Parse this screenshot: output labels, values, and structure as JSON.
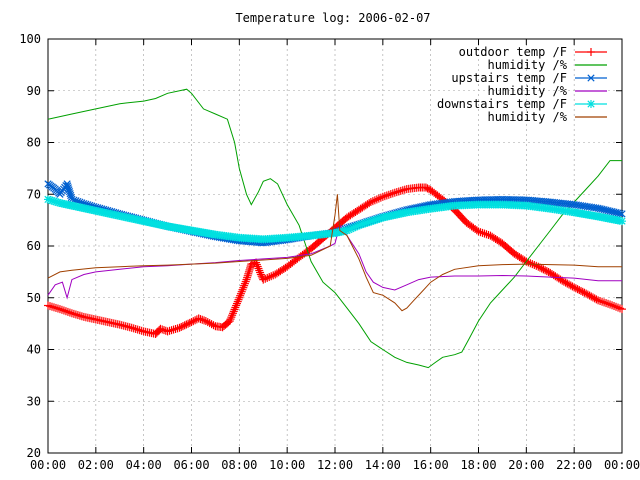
{
  "chart_data": {
    "type": "line",
    "title": "Temperature log: 2006-02-07",
    "xlabel": "",
    "ylabel": "",
    "xlim": [
      0,
      24
    ],
    "ylim": [
      20,
      100
    ],
    "x_ticks": [
      {
        "v": 0,
        "label": "00:00"
      },
      {
        "v": 2,
        "label": "02:00"
      },
      {
        "v": 4,
        "label": "04:00"
      },
      {
        "v": 6,
        "label": "06:00"
      },
      {
        "v": 8,
        "label": "08:00"
      },
      {
        "v": 10,
        "label": "10:00"
      },
      {
        "v": 12,
        "label": "12:00"
      },
      {
        "v": 14,
        "label": "14:00"
      },
      {
        "v": 16,
        "label": "16:00"
      },
      {
        "v": 18,
        "label": "18:00"
      },
      {
        "v": 20,
        "label": "20:00"
      },
      {
        "v": 22,
        "label": "22:00"
      },
      {
        "v": 24,
        "label": "00:00"
      }
    ],
    "y_ticks": [
      {
        "v": 20,
        "label": "20"
      },
      {
        "v": 30,
        "label": "30"
      },
      {
        "v": 40,
        "label": "40"
      },
      {
        "v": 50,
        "label": "50"
      },
      {
        "v": 60,
        "label": "60"
      },
      {
        "v": 70,
        "label": "70"
      },
      {
        "v": 80,
        "label": "80"
      },
      {
        "v": 90,
        "label": "90"
      },
      {
        "v": 100,
        "label": "100"
      }
    ],
    "grid": true,
    "legend_position": "top-right",
    "series": [
      {
        "name": "outdoor temp /F",
        "color": "#ff0000",
        "marker": "plus",
        "points": [
          [
            0,
            48.5
          ],
          [
            0.5,
            47.8
          ],
          [
            1,
            47
          ],
          [
            1.5,
            46.3
          ],
          [
            2,
            45.8
          ],
          [
            2.5,
            45.3
          ],
          [
            3,
            44.8
          ],
          [
            3.5,
            44.2
          ],
          [
            4,
            43.5
          ],
          [
            4.5,
            43
          ],
          [
            4.7,
            44
          ],
          [
            5,
            43.5
          ],
          [
            5.5,
            44.2
          ],
          [
            6,
            45.3
          ],
          [
            6.3,
            46
          ],
          [
            6.6,
            45.5
          ],
          [
            7,
            44.5
          ],
          [
            7.3,
            44.3
          ],
          [
            7.6,
            45.5
          ],
          [
            8,
            50
          ],
          [
            8.3,
            53.5
          ],
          [
            8.5,
            56.5
          ],
          [
            8.7,
            56.8
          ],
          [
            8.9,
            54.5
          ],
          [
            9,
            53.5
          ],
          [
            9.5,
            54.5
          ],
          [
            10,
            56
          ],
          [
            10.5,
            57.8
          ],
          [
            11,
            59.5
          ],
          [
            11.5,
            61.5
          ],
          [
            12,
            63.5
          ],
          [
            12.5,
            65.5
          ],
          [
            13,
            67
          ],
          [
            13.5,
            68.5
          ],
          [
            14,
            69.5
          ],
          [
            14.5,
            70.3
          ],
          [
            15,
            71
          ],
          [
            15.5,
            71.3
          ],
          [
            15.8,
            71.3
          ],
          [
            16,
            70.8
          ],
          [
            16.5,
            69
          ],
          [
            17,
            67
          ],
          [
            17.5,
            64.5
          ],
          [
            18,
            62.8
          ],
          [
            18.5,
            62
          ],
          [
            19,
            60.5
          ],
          [
            19.5,
            58.5
          ],
          [
            20,
            57
          ],
          [
            20.5,
            56
          ],
          [
            21,
            54.8
          ],
          [
            21.5,
            53.3
          ],
          [
            22,
            52
          ],
          [
            22.5,
            50.8
          ],
          [
            23,
            49.5
          ],
          [
            23.5,
            48.7
          ],
          [
            24,
            47.8
          ]
        ]
      },
      {
        "name": "humidity /%",
        "color": "#00a000",
        "marker": "none",
        "points": [
          [
            0,
            84.5
          ],
          [
            1,
            85.5
          ],
          [
            2,
            86.5
          ],
          [
            3,
            87.5
          ],
          [
            4,
            88
          ],
          [
            4.5,
            88.5
          ],
          [
            5,
            89.5
          ],
          [
            5.5,
            90
          ],
          [
            5.8,
            90.3
          ],
          [
            6,
            89.5
          ],
          [
            6.5,
            86.5
          ],
          [
            7,
            85.5
          ],
          [
            7.5,
            84.5
          ],
          [
            7.8,
            80
          ],
          [
            8,
            75
          ],
          [
            8.3,
            70
          ],
          [
            8.5,
            68
          ],
          [
            8.8,
            70.5
          ],
          [
            9,
            72.5
          ],
          [
            9.3,
            73
          ],
          [
            9.6,
            72
          ],
          [
            10,
            68
          ],
          [
            10.5,
            64
          ],
          [
            11,
            57
          ],
          [
            11.5,
            53
          ],
          [
            12,
            51
          ],
          [
            12.5,
            48
          ],
          [
            13,
            45
          ],
          [
            13.5,
            41.5
          ],
          [
            14,
            40
          ],
          [
            14.5,
            38.5
          ],
          [
            15,
            37.5
          ],
          [
            15.5,
            37
          ],
          [
            15.9,
            36.5
          ],
          [
            16.2,
            37.5
          ],
          [
            16.5,
            38.5
          ],
          [
            17,
            39
          ],
          [
            17.3,
            39.5
          ],
          [
            17.6,
            42
          ],
          [
            18,
            45.5
          ],
          [
            18.5,
            49
          ],
          [
            19,
            51.5
          ],
          [
            19.5,
            54
          ],
          [
            20,
            57
          ],
          [
            20.5,
            60
          ],
          [
            21,
            63
          ],
          [
            21.5,
            66
          ],
          [
            22,
            68.5
          ],
          [
            22.5,
            71
          ],
          [
            23,
            73.5
          ],
          [
            23.5,
            76.5
          ],
          [
            24,
            76.5
          ]
        ]
      },
      {
        "name": "upstairs temp /F",
        "color": "#0060d0",
        "marker": "cross",
        "points": [
          [
            0,
            72
          ],
          [
            0.3,
            71
          ],
          [
            0.5,
            70
          ],
          [
            0.8,
            72
          ],
          [
            1,
            69
          ],
          [
            1.5,
            68.2
          ],
          [
            2,
            67.5
          ],
          [
            3,
            66.2
          ],
          [
            4,
            65
          ],
          [
            5,
            63.8
          ],
          [
            6,
            62.8
          ],
          [
            7,
            61.8
          ],
          [
            8,
            61
          ],
          [
            9,
            60.6
          ],
          [
            10,
            61.2
          ],
          [
            11,
            62
          ],
          [
            12,
            62.6
          ],
          [
            12.5,
            63.5
          ],
          [
            13,
            64.2
          ],
          [
            14,
            65.7
          ],
          [
            15,
            67
          ],
          [
            16,
            68
          ],
          [
            17,
            68.6
          ],
          [
            18,
            68.9
          ],
          [
            19,
            69
          ],
          [
            20,
            68.9
          ],
          [
            21,
            68.5
          ],
          [
            22,
            68
          ],
          [
            23,
            67.3
          ],
          [
            24,
            66.2
          ]
        ]
      },
      {
        "name": "humidity /%",
        "color": "#a000c0",
        "marker": "none",
        "points": [
          [
            0,
            50.5
          ],
          [
            0.3,
            52.5
          ],
          [
            0.6,
            53
          ],
          [
            0.8,
            50
          ],
          [
            1,
            53.5
          ],
          [
            1.5,
            54.5
          ],
          [
            2,
            55
          ],
          [
            3,
            55.5
          ],
          [
            4,
            56
          ],
          [
            5,
            56.2
          ],
          [
            6,
            56.5
          ],
          [
            7,
            56.8
          ],
          [
            8,
            57.2
          ],
          [
            9,
            57.5
          ],
          [
            10,
            57.8
          ],
          [
            11,
            58.5
          ],
          [
            11.8,
            60
          ],
          [
            12,
            60.5
          ],
          [
            12.2,
            64
          ],
          [
            12.5,
            62
          ],
          [
            13,
            58.5
          ],
          [
            13.3,
            55
          ],
          [
            13.6,
            53
          ],
          [
            14,
            52
          ],
          [
            14.5,
            51.5
          ],
          [
            15,
            52.5
          ],
          [
            15.5,
            53.5
          ],
          [
            16,
            54
          ],
          [
            17,
            54.2
          ],
          [
            18,
            54.2
          ],
          [
            19,
            54.3
          ],
          [
            20,
            54.2
          ],
          [
            21,
            54
          ],
          [
            22,
            53.8
          ],
          [
            23,
            53.3
          ],
          [
            24,
            53.3
          ]
        ]
      },
      {
        "name": "downstairs temp /F",
        "color": "#00e0e0",
        "marker": "star",
        "points": [
          [
            0,
            69
          ],
          [
            0.5,
            68.3
          ],
          [
            1,
            67.8
          ],
          [
            2,
            66.8
          ],
          [
            3,
            65.8
          ],
          [
            4,
            64.8
          ],
          [
            5,
            63.8
          ],
          [
            6,
            63
          ],
          [
            7,
            62.2
          ],
          [
            8,
            61.6
          ],
          [
            9,
            61.3
          ],
          [
            10,
            61.6
          ],
          [
            11,
            62
          ],
          [
            12,
            62.5
          ],
          [
            12.5,
            63
          ],
          [
            13,
            64
          ],
          [
            14,
            65.5
          ],
          [
            15,
            66.5
          ],
          [
            16,
            67.2
          ],
          [
            17,
            67.8
          ],
          [
            18,
            68
          ],
          [
            19,
            68
          ],
          [
            20,
            67.8
          ],
          [
            21,
            67.2
          ],
          [
            22,
            66.5
          ],
          [
            23,
            65.7
          ],
          [
            24,
            64.8
          ]
        ]
      },
      {
        "name": "humidity /%",
        "color": "#a04000",
        "marker": "none",
        "points": [
          [
            0,
            53.8
          ],
          [
            0.5,
            55
          ],
          [
            1,
            55.3
          ],
          [
            2,
            55.8
          ],
          [
            3,
            56
          ],
          [
            4,
            56.2
          ],
          [
            5,
            56.3
          ],
          [
            6,
            56.5
          ],
          [
            7,
            56.7
          ],
          [
            8,
            57
          ],
          [
            9,
            57.3
          ],
          [
            10,
            57.6
          ],
          [
            11,
            58.2
          ],
          [
            11.8,
            60
          ],
          [
            12,
            66
          ],
          [
            12.1,
            70
          ],
          [
            12.2,
            63
          ],
          [
            12.5,
            62
          ],
          [
            13,
            57.5
          ],
          [
            13.3,
            54
          ],
          [
            13.6,
            51
          ],
          [
            14,
            50.5
          ],
          [
            14.5,
            49
          ],
          [
            14.8,
            47.5
          ],
          [
            15,
            48
          ],
          [
            15.3,
            49.5
          ],
          [
            15.6,
            51
          ],
          [
            16,
            53
          ],
          [
            16.5,
            54.5
          ],
          [
            17,
            55.5
          ],
          [
            18,
            56.2
          ],
          [
            19,
            56.4
          ],
          [
            20,
            56.5
          ],
          [
            21,
            56.4
          ],
          [
            22,
            56.3
          ],
          [
            23,
            56
          ],
          [
            24,
            56
          ]
        ]
      }
    ]
  }
}
